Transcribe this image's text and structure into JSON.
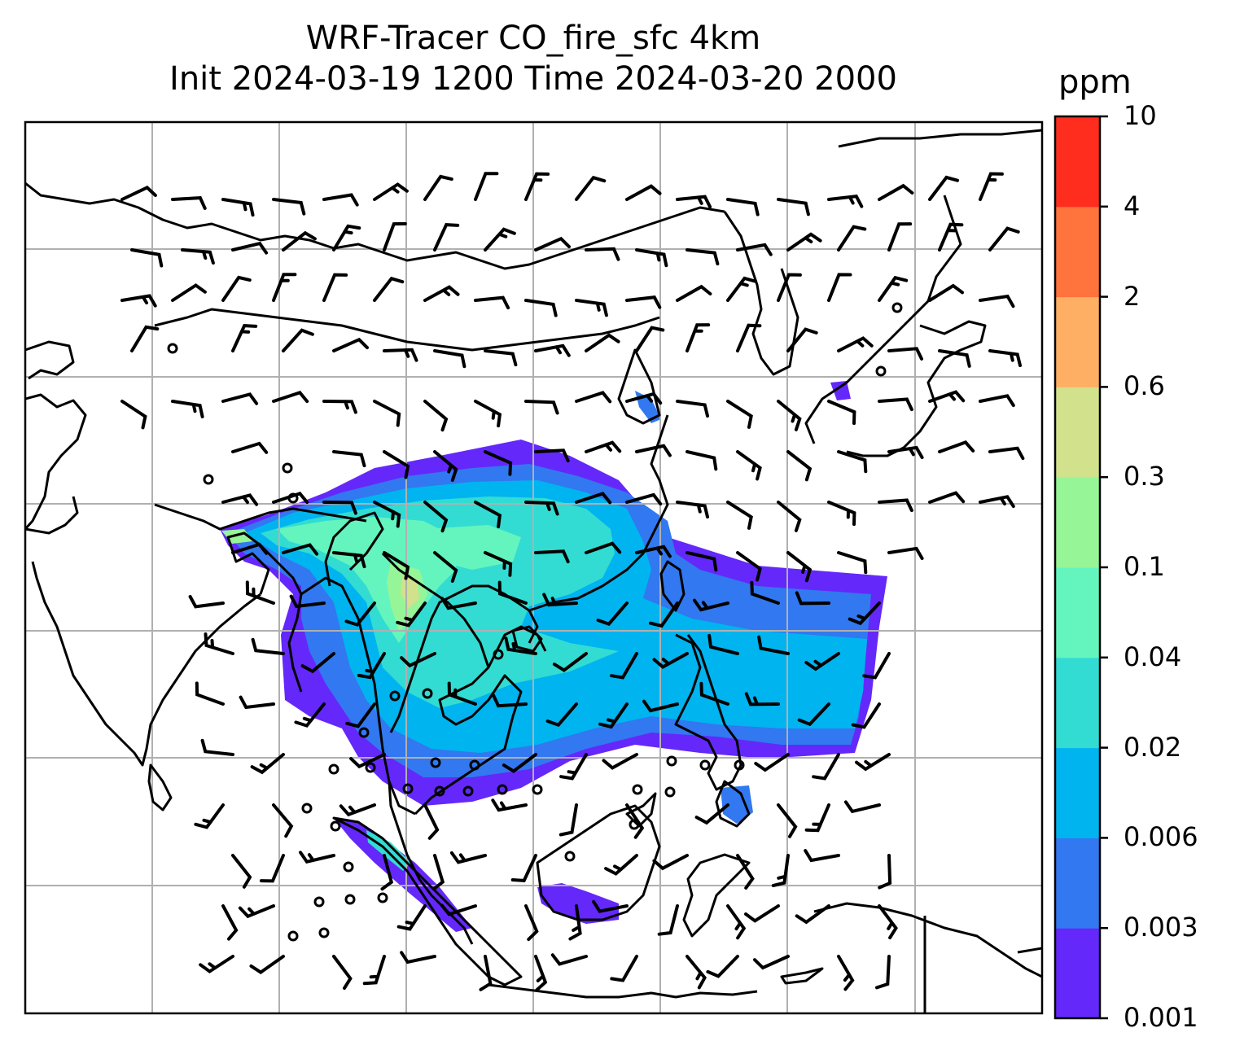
{
  "title": {
    "line1": "WRF-Tracer CO_fire_sfc 4km",
    "line2": "Init 2024-03-19 1200 Time 2024-03-20 2000"
  },
  "colorbar": {
    "unit": "ppm",
    "levels": [
      "0.001",
      "0.003",
      "0.006",
      "0.02",
      "0.04",
      "0.1",
      "0.3",
      "0.6",
      "2",
      "4",
      "10"
    ],
    "colors": [
      "#6428fa",
      "#3278f0",
      "#00b4f0",
      "#32dcd2",
      "#64f5be",
      "#96f596",
      "#d2e18c",
      "#ffaf64",
      "#ff733c",
      "#ff2d1e"
    ]
  },
  "map": {
    "field": "CO_fire_sfc",
    "resolution": "4km",
    "plume_colors": {
      "lowest": "#6428fa",
      "low": "#3278f0",
      "mid": "#00b4f0",
      "midhigh": "#32dcd2",
      "high": "#64f5be",
      "peak": "#96f596",
      "hot": "#d2e18c"
    },
    "gridline_color": "#b0b0b0",
    "coastline_color": "#000000"
  }
}
